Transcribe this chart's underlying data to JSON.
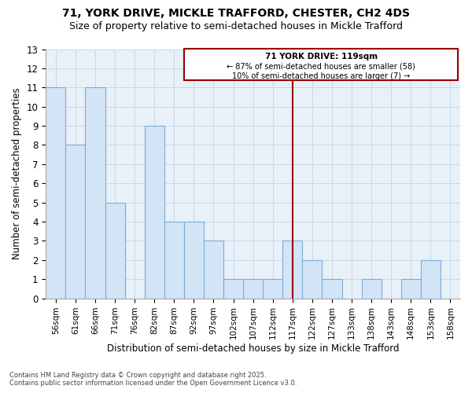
{
  "title1": "71, YORK DRIVE, MICKLE TRAFFORD, CHESTER, CH2 4DS",
  "title2": "Size of property relative to semi-detached houses in Mickle Trafford",
  "xlabel": "Distribution of semi-detached houses by size in Mickle Trafford",
  "ylabel": "Number of semi-detached properties",
  "footnote1": "Contains HM Land Registry data © Crown copyright and database right 2025.",
  "footnote2": "Contains public sector information licensed under the Open Government Licence v3.0.",
  "categories": [
    "56sqm",
    "61sqm",
    "66sqm",
    "71sqm",
    "76sqm",
    "82sqm",
    "87sqm",
    "92sqm",
    "97sqm",
    "102sqm",
    "107sqm",
    "112sqm",
    "117sqm",
    "122sqm",
    "127sqm",
    "133sqm",
    "138sqm",
    "143sqm",
    "148sqm",
    "153sqm",
    "158sqm"
  ],
  "values": [
    11,
    8,
    11,
    5,
    0,
    9,
    4,
    4,
    3,
    1,
    1,
    1,
    3,
    2,
    1,
    0,
    1,
    0,
    1,
    2,
    0
  ],
  "bar_color": "#d4e4f7",
  "bar_edge_color": "#7bacd4",
  "grid_color": "#c8d8e8",
  "plot_bg_color": "#e8f0f8",
  "fig_bg_color": "#ffffff",
  "vline_color": "#9b0000",
  "vline_x_index": 12,
  "annotation_title": "71 YORK DRIVE: 119sqm",
  "annotation_line1": "← 87% of semi-detached houses are smaller (58)",
  "annotation_line2": "10% of semi-detached houses are larger (7) →",
  "annotation_box_color": "#9b0000",
  "ylim": [
    0,
    13
  ],
  "yticks": [
    0,
    1,
    2,
    3,
    4,
    5,
    6,
    7,
    8,
    9,
    10,
    11,
    12,
    13
  ]
}
